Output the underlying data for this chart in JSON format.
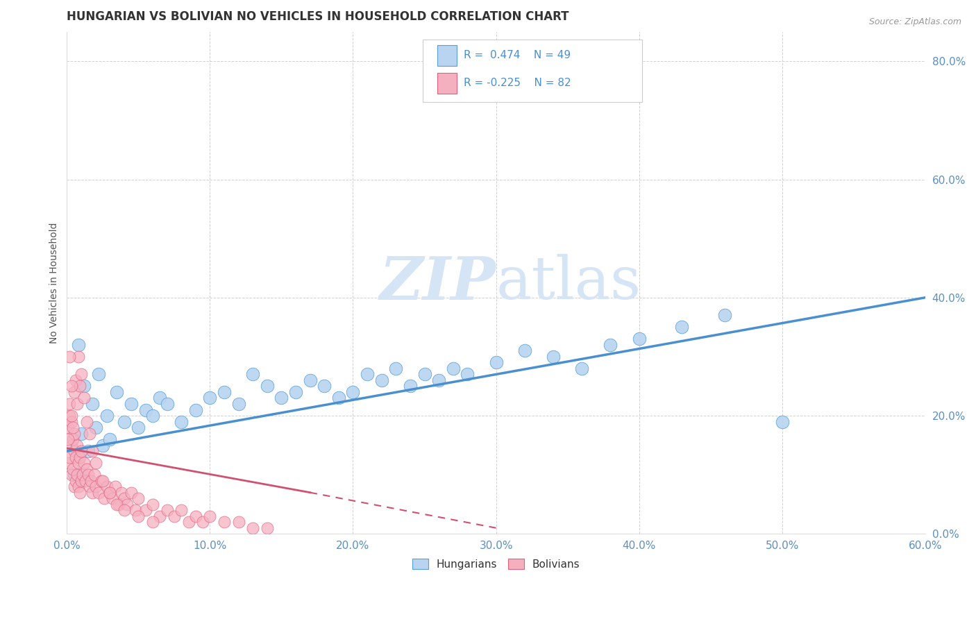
{
  "title": "HUNGARIAN VS BOLIVIAN NO VEHICLES IN HOUSEHOLD CORRELATION CHART",
  "source": "Source: ZipAtlas.com",
  "ylabel": "No Vehicles in Household",
  "xlim": [
    0.0,
    0.6
  ],
  "ylim": [
    0.0,
    0.85
  ],
  "xticks": [
    0.0,
    0.1,
    0.2,
    0.3,
    0.4,
    0.5,
    0.6
  ],
  "yticks": [
    0.0,
    0.2,
    0.4,
    0.6,
    0.8
  ],
  "blue_color": "#b8d4f0",
  "blue_edge_color": "#5a9fd4",
  "pink_color": "#f5b0c0",
  "pink_edge_color": "#e06080",
  "blue_line_color": "#4a8fd0",
  "pink_line_color": "#d05070",
  "watermark_color": "#d5e5f5",
  "hung_line_x0": 0.0,
  "hung_line_y0": 0.14,
  "hung_line_x1": 0.6,
  "hung_line_y1": 0.4,
  "boli_line_x0": 0.0,
  "boli_line_y0": 0.145,
  "boli_line_x1": 0.3,
  "boli_line_y1": 0.01,
  "hungarian_x": [
    0.005,
    0.008,
    0.01,
    0.012,
    0.015,
    0.018,
    0.02,
    0.022,
    0.025,
    0.028,
    0.03,
    0.035,
    0.04,
    0.045,
    0.05,
    0.055,
    0.06,
    0.065,
    0.07,
    0.08,
    0.09,
    0.1,
    0.11,
    0.12,
    0.13,
    0.14,
    0.15,
    0.16,
    0.17,
    0.18,
    0.19,
    0.2,
    0.21,
    0.22,
    0.23,
    0.24,
    0.25,
    0.26,
    0.27,
    0.28,
    0.3,
    0.32,
    0.34,
    0.36,
    0.38,
    0.4,
    0.43,
    0.46,
    0.5
  ],
  "hungarian_y": [
    0.1,
    0.32,
    0.17,
    0.25,
    0.14,
    0.22,
    0.18,
    0.27,
    0.15,
    0.2,
    0.16,
    0.24,
    0.19,
    0.22,
    0.18,
    0.21,
    0.2,
    0.23,
    0.22,
    0.19,
    0.21,
    0.23,
    0.24,
    0.22,
    0.27,
    0.25,
    0.23,
    0.24,
    0.26,
    0.25,
    0.23,
    0.24,
    0.27,
    0.26,
    0.28,
    0.25,
    0.27,
    0.26,
    0.28,
    0.27,
    0.29,
    0.31,
    0.3,
    0.28,
    0.32,
    0.33,
    0.35,
    0.37,
    0.19
  ],
  "bolivian_x": [
    0.001,
    0.001,
    0.002,
    0.002,
    0.003,
    0.003,
    0.003,
    0.004,
    0.004,
    0.005,
    0.005,
    0.005,
    0.006,
    0.006,
    0.007,
    0.007,
    0.008,
    0.008,
    0.009,
    0.009,
    0.01,
    0.01,
    0.011,
    0.012,
    0.013,
    0.014,
    0.015,
    0.016,
    0.017,
    0.018,
    0.019,
    0.02,
    0.022,
    0.024,
    0.026,
    0.028,
    0.03,
    0.032,
    0.034,
    0.036,
    0.038,
    0.04,
    0.042,
    0.045,
    0.048,
    0.05,
    0.055,
    0.06,
    0.065,
    0.07,
    0.075,
    0.08,
    0.085,
    0.09,
    0.095,
    0.1,
    0.11,
    0.12,
    0.13,
    0.14,
    0.002,
    0.003,
    0.004,
    0.005,
    0.006,
    0.007,
    0.008,
    0.009,
    0.01,
    0.012,
    0.014,
    0.016,
    0.018,
    0.02,
    0.025,
    0.03,
    0.035,
    0.04,
    0.05,
    0.06,
    0.001,
    0.002,
    0.003
  ],
  "bolivian_y": [
    0.12,
    0.18,
    0.13,
    0.2,
    0.1,
    0.15,
    0.19,
    0.11,
    0.16,
    0.08,
    0.14,
    0.17,
    0.09,
    0.13,
    0.1,
    0.15,
    0.08,
    0.12,
    0.07,
    0.13,
    0.09,
    0.14,
    0.1,
    0.12,
    0.09,
    0.11,
    0.1,
    0.08,
    0.09,
    0.07,
    0.1,
    0.08,
    0.07,
    0.09,
    0.06,
    0.08,
    0.07,
    0.06,
    0.08,
    0.05,
    0.07,
    0.06,
    0.05,
    0.07,
    0.04,
    0.06,
    0.04,
    0.05,
    0.03,
    0.04,
    0.03,
    0.04,
    0.02,
    0.03,
    0.02,
    0.03,
    0.02,
    0.02,
    0.01,
    0.01,
    0.22,
    0.2,
    0.18,
    0.24,
    0.26,
    0.22,
    0.3,
    0.25,
    0.27,
    0.23,
    0.19,
    0.17,
    0.14,
    0.12,
    0.09,
    0.07,
    0.05,
    0.04,
    0.03,
    0.02,
    0.16,
    0.3,
    0.25
  ]
}
